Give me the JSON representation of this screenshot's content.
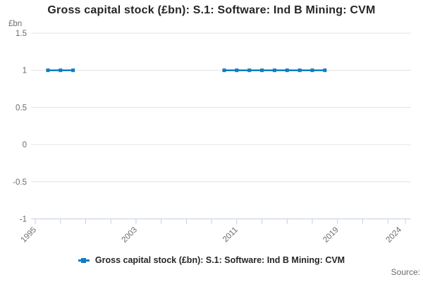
{
  "header": {
    "title": "Gross capital stock (£bn): S.1: Software: Ind B Mining: CVM"
  },
  "legend": {
    "label": "Gross capital stock (£bn): S.1: Software: Ind B Mining: CVM"
  },
  "footer": {
    "source_label": "Source:"
  },
  "colors": {
    "accent_line": "#0e7dc2",
    "grid": "#e4e4e4",
    "axis": "#c4cfdf",
    "muted_text": "#6b6b6b",
    "title_text": "#262626",
    "background": "#ffffff"
  },
  "chart_data": {
    "type": "line",
    "title": "Gross capital stock (£bn): S.1: Software: Ind B Mining: CVM",
    "xlabel": "",
    "ylabel": "£bn",
    "ylim": [
      -1,
      1.5
    ],
    "xlim": [
      1994.66,
      2024.84
    ],
    "grid": true,
    "legend_position": "bottom",
    "y_ticks": [
      1.5,
      1,
      0.5,
      0,
      -0.5,
      -1
    ],
    "y_tick_labels": [
      "1.5",
      "1",
      "0.5",
      "0",
      "-0.5",
      "-1"
    ],
    "x_ticks": [
      1995,
      1997,
      1999,
      2001,
      2003,
      2005,
      2007,
      2009,
      2011,
      2013,
      2015,
      2017,
      2019,
      2021,
      2023,
      2024.4
    ],
    "x_tick_labels": [
      {
        "x": 1995,
        "label": "1995"
      },
      {
        "x": 2003,
        "label": "2003"
      },
      {
        "x": 2011,
        "label": "2011"
      },
      {
        "x": 2019,
        "label": "2019"
      },
      {
        "x": 2024,
        "label": "2024"
      }
    ],
    "series": [
      {
        "name": "Gross capital stock (£bn): S.1: Software: Ind B Mining: CVM",
        "color": "#0e7dc2",
        "marker": "square",
        "segments": [
          {
            "x": [
              1996,
              1997,
              1998
            ],
            "y": [
              1,
              1,
              1
            ]
          },
          {
            "x": [
              2010,
              2011,
              2012,
              2013,
              2014,
              2015,
              2016,
              2017,
              2018
            ],
            "y": [
              1,
              1,
              1,
              1,
              1,
              1,
              1,
              1,
              1
            ]
          }
        ]
      }
    ]
  }
}
